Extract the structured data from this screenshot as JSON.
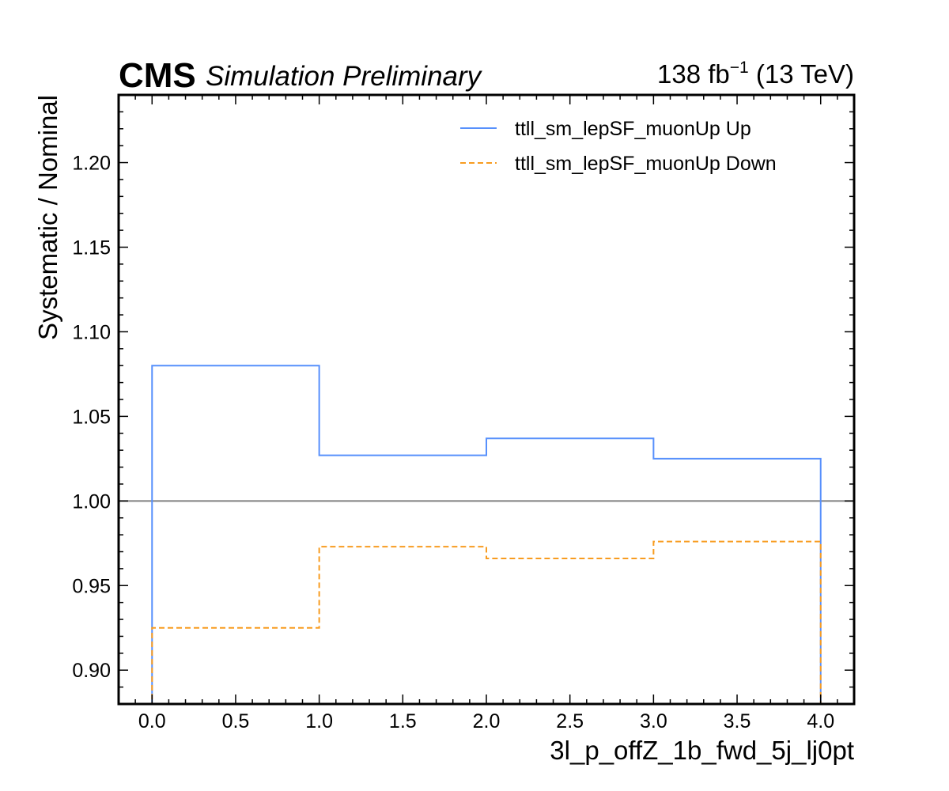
{
  "header": {
    "experiment": "CMS",
    "status": "Simulation Preliminary",
    "lumi_prefix": "138 fb",
    "lumi_exp": "−1",
    "lumi_suffix": " (13 TeV)"
  },
  "chart_data": {
    "type": "line",
    "style": "step histogram",
    "xlabel": "3l_p_offZ_1b_fwd_5j_lj0pt",
    "ylabel": "Systematic / Nominal",
    "xlim": [
      -0.2,
      4.2
    ],
    "ylim": [
      0.88,
      1.24
    ],
    "xticks": [
      "0.0",
      "0.5",
      "1.0",
      "1.5",
      "2.0",
      "2.5",
      "3.0",
      "3.5",
      "4.0"
    ],
    "yticks": [
      "0.90",
      "0.95",
      "1.00",
      "1.05",
      "1.10",
      "1.15",
      "1.20"
    ],
    "bin_edges": [
      0,
      1,
      2,
      3,
      4
    ],
    "reference_line": {
      "y": 1.0,
      "color": "#808080"
    },
    "legend_position": "top-right",
    "grid": false,
    "series": [
      {
        "name": "ttll_sm_lepSF_muonUp Up",
        "color": "#5790fc",
        "linestyle": "solid",
        "values": [
          1.08,
          1.027,
          1.037,
          1.025
        ]
      },
      {
        "name": "ttll_sm_lepSF_muonUp Down",
        "color": "#f89c20",
        "linestyle": "dashed",
        "values": [
          0.925,
          0.973,
          0.966,
          0.976
        ]
      }
    ]
  }
}
